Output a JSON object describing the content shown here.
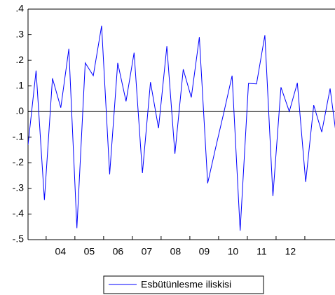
{
  "chart_data": {
    "type": "line",
    "x": [
      2003.37,
      2003.65,
      2003.94,
      2004.22,
      2004.51,
      2004.79,
      2005.07,
      2005.36,
      2005.64,
      2005.93,
      2006.21,
      2006.49,
      2006.78,
      2007.06,
      2007.35,
      2007.63,
      2007.91,
      2008.2,
      2008.48,
      2008.77,
      2009.05,
      2009.33,
      2009.62,
      2009.9,
      2010.19,
      2010.47,
      2010.75,
      2011.04,
      2011.32,
      2011.61,
      2011.89,
      2012.17,
      2012.46,
      2012.74,
      2013.03,
      2013.31,
      2013.59,
      2013.88,
      2014.16
    ],
    "series": [
      {
        "name": "Esbütünlesme iliskisi",
        "color": "#0000ff",
        "values": [
          -0.13,
          0.16,
          -0.345,
          0.13,
          0.015,
          0.245,
          -0.455,
          0.19,
          0.14,
          0.335,
          -0.245,
          0.19,
          0.04,
          0.23,
          -0.24,
          0.115,
          -0.065,
          0.255,
          -0.165,
          0.165,
          0.055,
          0.29,
          -0.28,
          -0.14,
          0.0,
          0.14,
          -0.465,
          0.11,
          0.108,
          0.298,
          -0.33,
          0.095,
          0.0,
          0.112,
          -0.275,
          0.025,
          -0.08,
          0.09,
          -0.15
        ]
      }
    ],
    "xlim": [
      2003.37,
      2014.05
    ],
    "xticks": [
      {
        "value": 2004.5,
        "label": "04"
      },
      {
        "value": 2005.5,
        "label": "05"
      },
      {
        "value": 2006.5,
        "label": "06"
      },
      {
        "value": 2007.5,
        "label": "07"
      },
      {
        "value": 2008.5,
        "label": "08"
      },
      {
        "value": 2009.5,
        "label": "09"
      },
      {
        "value": 2010.5,
        "label": "10"
      },
      {
        "value": 2011.5,
        "label": "11"
      },
      {
        "value": 2012.5,
        "label": "12"
      }
    ],
    "xtick_marks": [
      2004,
      2005,
      2006,
      2007,
      2008,
      2009,
      2010,
      2011,
      2012,
      2013
    ],
    "ylim": [
      -0.5,
      0.4
    ],
    "yticks": [
      {
        "value": 0.4,
        "label": ".4"
      },
      {
        "value": 0.3,
        "label": ".3"
      },
      {
        "value": 0.2,
        "label": ".2"
      },
      {
        "value": 0.1,
        "label": ".1"
      },
      {
        "value": 0.0,
        "label": ".0"
      },
      {
        "value": -0.1,
        "label": "-.1"
      },
      {
        "value": -0.2,
        "label": "-.2"
      },
      {
        "value": -0.3,
        "label": "-.3"
      },
      {
        "value": -0.4,
        "label": "-.4"
      },
      {
        "value": -0.5,
        "label": "-.5"
      }
    ],
    "zero_line": true,
    "legend": "bottom"
  }
}
